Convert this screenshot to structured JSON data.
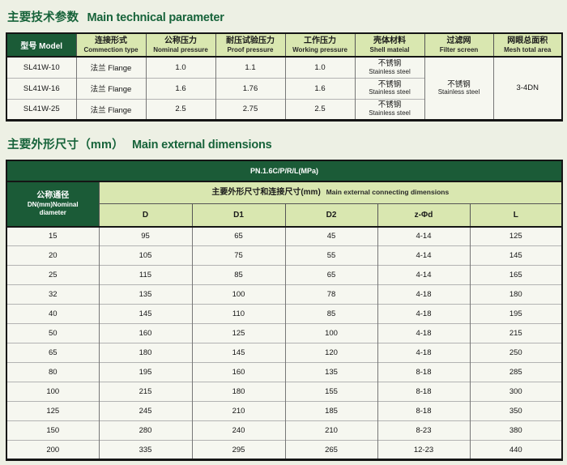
{
  "sections": {
    "technical": {
      "title_zh": "主要技术参数",
      "title_en": "Main technical parameter"
    },
    "dimensions": {
      "title_zh": "主要外形尺寸（mm）",
      "title_en": "Main external dimensions"
    }
  },
  "table1": {
    "model_header": "型号 Model",
    "headers": [
      {
        "zh": "连接形式",
        "en": "Commection type"
      },
      {
        "zh": "公称压力",
        "en": "Nominal pressure"
      },
      {
        "zh": "耐压试验压力",
        "en": "Proof pressure"
      },
      {
        "zh": "工作压力",
        "en": "Working pressure"
      },
      {
        "zh": "壳体材料",
        "en": "Shell mateial"
      },
      {
        "zh": "过滤网",
        "en": "Filter screen"
      },
      {
        "zh": "网眼总面积",
        "en": "Mesh total area"
      }
    ],
    "rows": [
      {
        "model": "SL41W-10",
        "connection": "法兰 Flange",
        "nominal": "1.0",
        "proof": "1.1",
        "working": "1.0",
        "shell_zh": "不锈钢",
        "shell_en": "Stainless steel"
      },
      {
        "model": "SL41W-16",
        "connection": "法兰 Flange",
        "nominal": "1.6",
        "proof": "1.76",
        "working": "1.6",
        "shell_zh": "不锈钢",
        "shell_en": "Stainless steel"
      },
      {
        "model": "SL41W-25",
        "connection": "法兰 Flange",
        "nominal": "2.5",
        "proof": "2.75",
        "working": "2.5",
        "shell_zh": "不锈钢",
        "shell_en": "Stainless steel"
      }
    ],
    "filter_merged": {
      "zh": "不锈钢",
      "en": "Stainless steel"
    },
    "mesh_merged": "3-4DN"
  },
  "table2": {
    "banner": "PN.1.6C/P/R/L(MPa)",
    "dn_header": {
      "zh": "公称通径",
      "en_line1": "DN(mm)Nominal",
      "en_line2": "diameter"
    },
    "dims_header": {
      "zh": "主要外形尺寸和连接尺寸(mm)",
      "en": "Main external connecting dimensions"
    },
    "columns": [
      "D",
      "D1",
      "D2",
      "z-Φd",
      "L"
    ],
    "rows": [
      [
        "15",
        "95",
        "65",
        "45",
        "4-14",
        "125"
      ],
      [
        "20",
        "105",
        "75",
        "55",
        "4-14",
        "145"
      ],
      [
        "25",
        "115",
        "85",
        "65",
        "4-14",
        "165"
      ],
      [
        "32",
        "135",
        "100",
        "78",
        "4-18",
        "180"
      ],
      [
        "40",
        "145",
        "110",
        "85",
        "4-18",
        "195"
      ],
      [
        "50",
        "160",
        "125",
        "100",
        "4-18",
        "215"
      ],
      [
        "65",
        "180",
        "145",
        "120",
        "4-18",
        "250"
      ],
      [
        "80",
        "195",
        "160",
        "135",
        "8-18",
        "285"
      ],
      [
        "100",
        "215",
        "180",
        "155",
        "8-18",
        "300"
      ],
      [
        "125",
        "245",
        "210",
        "185",
        "8-18",
        "350"
      ],
      [
        "150",
        "280",
        "240",
        "210",
        "8-23",
        "380"
      ],
      [
        "200",
        "335",
        "295",
        "265",
        "12-23",
        "440"
      ]
    ]
  }
}
